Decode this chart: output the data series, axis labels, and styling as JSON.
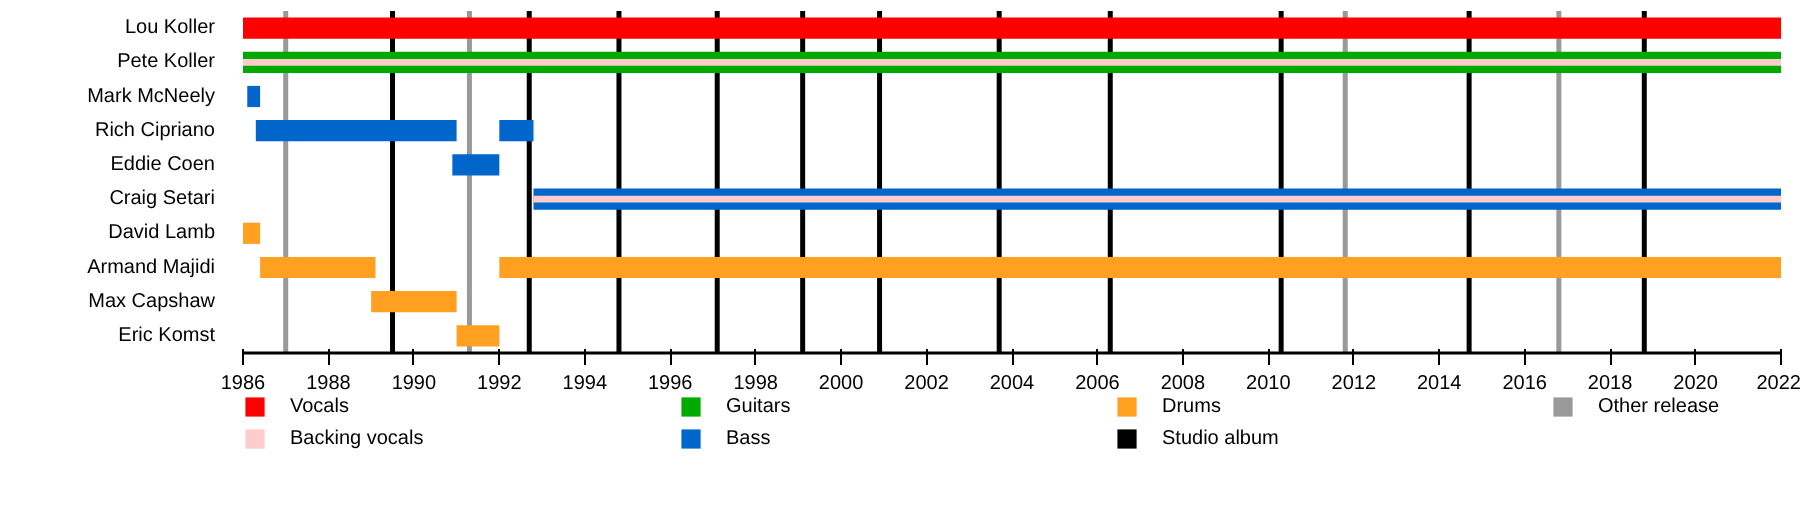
{
  "chart_data": {
    "type": "bar",
    "orientation": "horizontal",
    "categories": [
      "Lou Koller",
      "Pete Koller",
      "Mark McNeely",
      "Rich Cipriano",
      "Eddie Coen",
      "Craig Setari",
      "David Lamb",
      "Armand Majidi",
      "Max Capshaw",
      "Eric Komst"
    ],
    "series": [
      {
        "name": "Vocals",
        "color": "#ff0000",
        "base": [
          1986,
          null,
          null,
          null,
          null,
          null,
          null,
          null,
          null,
          null
        ],
        "values": [
          36,
          null,
          null,
          null,
          null,
          null,
          null,
          null,
          null,
          null
        ]
      },
      {
        "name": "Backing vocals",
        "color": "#ffcccc",
        "base": [
          null,
          1986,
          null,
          null,
          null,
          1992.8,
          null,
          null,
          null,
          null
        ],
        "values": [
          null,
          36,
          null,
          null,
          null,
          29.2,
          null,
          null,
          null,
          null
        ]
      },
      {
        "name": "Guitars",
        "color": "#00aa00",
        "base": [
          null,
          1986,
          null,
          null,
          null,
          null,
          null,
          null,
          null,
          null
        ],
        "values": [
          null,
          36,
          null,
          null,
          null,
          null,
          null,
          null,
          null,
          null
        ]
      },
      {
        "name": "Bass",
        "color": "#0066cc",
        "base": [
          null,
          null,
          1986.1,
          1986.3,
          1990.9,
          1992.8,
          null,
          null,
          null,
          null
        ],
        "values": [
          null,
          null,
          0.3,
          4.7,
          1.1,
          29.2,
          null,
          null,
          null,
          null
        ]
      },
      {
        "color": "#0066cc",
        "base": [
          null,
          null,
          null,
          1992.0,
          null,
          null,
          null,
          null,
          null,
          null
        ],
        "values": [
          null,
          null,
          null,
          0.8,
          null,
          null,
          null,
          null,
          null,
          null
        ]
      },
      {
        "name": "Drums",
        "color": "#ffa020",
        "base": [
          null,
          null,
          null,
          null,
          null,
          null,
          1986,
          1986.4,
          1989.0,
          1991.0
        ],
        "values": [
          null,
          null,
          null,
          null,
          null,
          null,
          0.4,
          2.7,
          2.0,
          1.0
        ]
      },
      {
        "color": "#ffa020",
        "base": [
          null,
          null,
          null,
          null,
          null,
          null,
          null,
          1992.0,
          null,
          null
        ],
        "values": [
          null,
          null,
          null,
          null,
          null,
          null,
          null,
          30.0,
          null,
          null
        ]
      }
    ],
    "xlim": [
      1986,
      2022
    ],
    "xticks": [
      1986,
      1988,
      1990,
      1992,
      1994,
      1996,
      1998,
      2000,
      2002,
      2004,
      2006,
      2008,
      2010,
      2012,
      2014,
      2016,
      2018,
      2020,
      2022
    ],
    "ref_lines": [
      {
        "axis": "x",
        "value": 1989.5,
        "label": "Studio album",
        "color": "#000000"
      },
      {
        "axis": "x",
        "value": 1992.7,
        "color": "#000000"
      },
      {
        "axis": "x",
        "value": 1994.8,
        "color": "#000000"
      },
      {
        "axis": "x",
        "value": 1997.1,
        "color": "#000000"
      },
      {
        "axis": "x",
        "value": 1999.1,
        "color": "#000000"
      },
      {
        "axis": "x",
        "value": 2000.9,
        "color": "#000000"
      },
      {
        "axis": "x",
        "value": 2003.7,
        "color": "#000000"
      },
      {
        "axis": "x",
        "value": 2006.3,
        "color": "#000000"
      },
      {
        "axis": "x",
        "value": 2010.3,
        "color": "#000000"
      },
      {
        "axis": "x",
        "value": 2014.7,
        "color": "#000000"
      },
      {
        "axis": "x",
        "value": 2018.8,
        "color": "#000000"
      },
      {
        "axis": "x",
        "value": 1987.0,
        "label": "Other release",
        "color": "#999999"
      },
      {
        "axis": "x",
        "value": 1991.3,
        "color": "#999999"
      },
      {
        "axis": "x",
        "value": 2011.8,
        "color": "#999999"
      },
      {
        "axis": "x",
        "value": 2016.8,
        "color": "#999999"
      }
    ],
    "grid": false,
    "legend": "bottom"
  }
}
